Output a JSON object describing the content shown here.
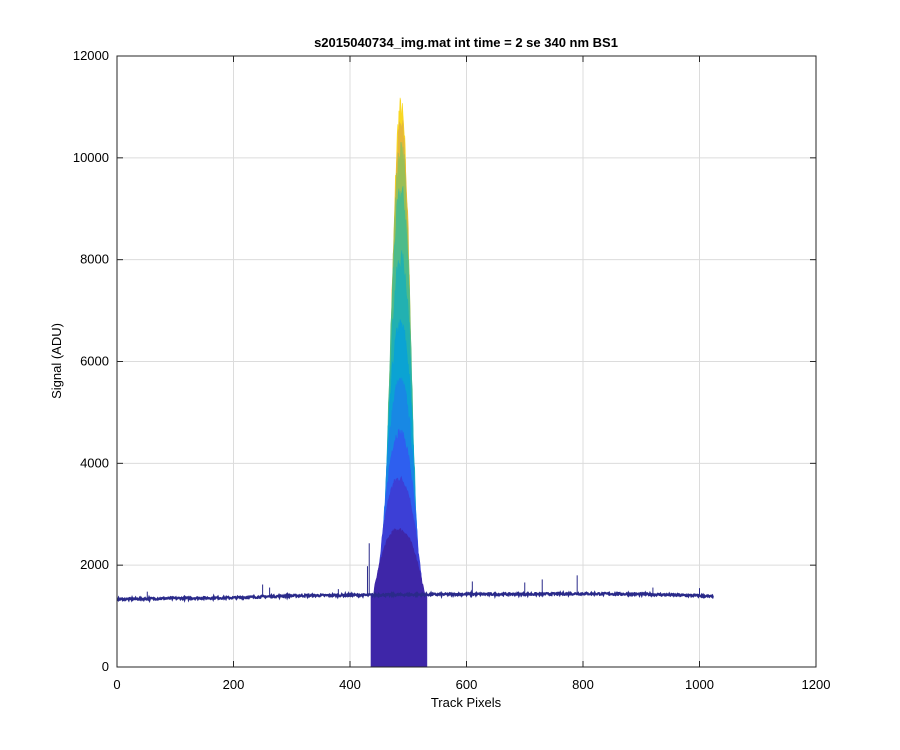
{
  "chart_data": {
    "type": "line",
    "title": "s2015040734_img.mat int time = 2 se  340 nm BS1",
    "xlabel": "Track Pixels",
    "ylabel": "Signal (ADU)",
    "xlim": [
      0,
      1200
    ],
    "ylim": [
      0,
      12000
    ],
    "x_ticks": [
      0,
      200,
      400,
      600,
      800,
      1000,
      1200
    ],
    "y_ticks": [
      0,
      2000,
      4000,
      6000,
      8000,
      10000,
      12000
    ],
    "x_tick_labels": [
      "0",
      "200",
      "400",
      "600",
      "800",
      "1000",
      "1200"
    ],
    "y_tick_labels": [
      "0",
      "2000",
      "4000",
      "6000",
      "8000",
      "10000",
      "12000"
    ],
    "grid": true,
    "legend": "none",
    "baseline": {
      "x": [
        0,
        100,
        200,
        300,
        400,
        600,
        700,
        800,
        900,
        1000,
        1024
      ],
      "y": [
        1330,
        1350,
        1360,
        1400,
        1410,
        1430,
        1430,
        1440,
        1430,
        1400,
        1380
      ]
    },
    "spikes": [
      {
        "x": 52,
        "y": 1480
      },
      {
        "x": 250,
        "y": 1620
      },
      {
        "x": 262,
        "y": 1560
      },
      {
        "x": 380,
        "y": 1530
      },
      {
        "x": 430,
        "y": 1980
      },
      {
        "x": 433,
        "y": 2430
      },
      {
        "x": 610,
        "y": 1680
      },
      {
        "x": 700,
        "y": 1660
      },
      {
        "x": 730,
        "y": 1720
      },
      {
        "x": 790,
        "y": 1800
      },
      {
        "x": 920,
        "y": 1560
      },
      {
        "x": 1000,
        "y": 1550
      }
    ],
    "series": [
      {
        "color": "#3e26a8",
        "peak_x": 483,
        "peak_y": 2700,
        "left_x": 440,
        "right_x": 528
      },
      {
        "color": "#3c3fd6",
        "peak_x": 484,
        "peak_y": 3700,
        "left_x": 445,
        "right_x": 525
      },
      {
        "color": "#2e5fef",
        "peak_x": 485,
        "peak_y": 4600,
        "left_x": 450,
        "right_x": 522
      },
      {
        "color": "#1888e4",
        "peak_x": 486,
        "peak_y": 5600,
        "left_x": 452,
        "right_x": 520
      },
      {
        "color": "#0ba3d3",
        "peak_x": 487,
        "peak_y": 6700,
        "left_x": 455,
        "right_x": 518
      },
      {
        "color": "#22b1b1",
        "peak_x": 488,
        "peak_y": 8000,
        "left_x": 457,
        "right_x": 516
      },
      {
        "color": "#4dbb8a",
        "peak_x": 488,
        "peak_y": 9300,
        "left_x": 459,
        "right_x": 514
      },
      {
        "color": "#9abf56",
        "peak_x": 488,
        "peak_y": 10100,
        "left_x": 461,
        "right_x": 512
      },
      {
        "color": "#e5b83a",
        "peak_x": 488,
        "peak_y": 10600,
        "left_x": 463,
        "right_x": 511
      },
      {
        "color": "#f8d722",
        "peak_x": 487,
        "peak_y": 10950,
        "left_x": 466,
        "right_x": 509
      }
    ]
  }
}
